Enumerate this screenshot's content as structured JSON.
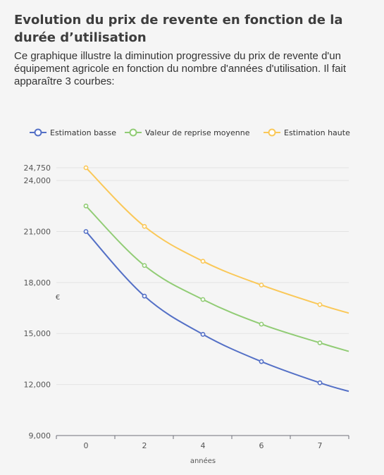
{
  "header": {
    "title": "Evolution du prix de revente en fonction de la durée d’utilisation",
    "description": "Ce graphique illustre la diminution progressive du prix de revente d'un équipement agricole en fonction du nombre d'années d'utilisation. Il fait apparaître 3 courbes:"
  },
  "chart_data": {
    "type": "line",
    "xlabel": "années",
    "ylabel": "€",
    "x_ticks": [
      0,
      2,
      4,
      6,
      7
    ],
    "y_ticks": [
      9000,
      12000,
      15000,
      18000,
      21000,
      24000,
      24750
    ],
    "y_tick_labels": [
      "9,000",
      "12,000",
      "15,000",
      "18,000",
      "21,000",
      "24,000",
      "24,750"
    ],
    "ylim": [
      9000,
      24750
    ],
    "grid": true,
    "legend_position": "top",
    "series": [
      {
        "name": "Estimation basse",
        "color": "#5470c6",
        "points": [
          [
            0,
            21000
          ],
          [
            2,
            17200
          ],
          [
            4,
            14950
          ],
          [
            6,
            13350
          ],
          [
            7,
            12100
          ]
        ],
        "tail": [
          8,
          11600
        ]
      },
      {
        "name": "Valeur de reprise moyenne",
        "color": "#91cc75",
        "points": [
          [
            0,
            22500
          ],
          [
            2,
            19000
          ],
          [
            4,
            17000
          ],
          [
            6,
            15550
          ],
          [
            7,
            14450
          ]
        ],
        "tail": [
          8,
          13950
        ]
      },
      {
        "name": "Estimation haute",
        "color": "#fac858",
        "points": [
          [
            0,
            24750
          ],
          [
            2,
            21300
          ],
          [
            4,
            19250
          ],
          [
            6,
            17850
          ],
          [
            7,
            16700
          ]
        ],
        "tail": [
          8,
          16200
        ]
      }
    ]
  }
}
